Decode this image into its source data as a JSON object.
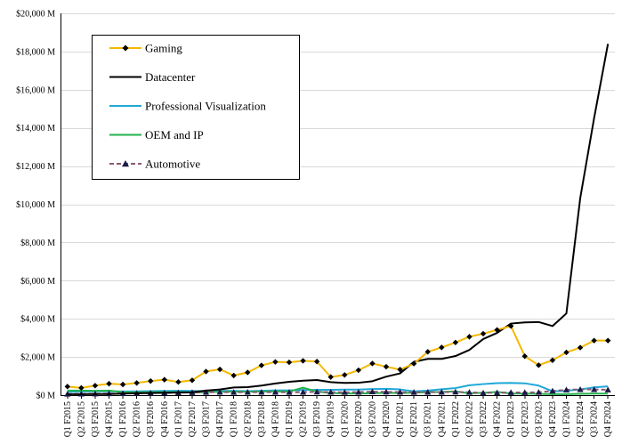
{
  "chart_data": {
    "type": "line",
    "title": "",
    "xlabel": "",
    "ylabel": "",
    "ylim": [
      0,
      20000
    ],
    "y_ticks": [
      0,
      2000,
      4000,
      6000,
      8000,
      10000,
      12000,
      14000,
      16000,
      18000,
      20000
    ],
    "y_tick_labels": [
      "$0 M",
      "$2,000 M",
      "$4,000 M",
      "$6,000 M",
      "$8,000 M",
      "$10,000 M",
      "$12,000 M",
      "$14,000 M",
      "$16,000 M",
      "$18,000 M",
      "$20,000 M"
    ],
    "grid": true,
    "legend_position": "top-left",
    "categories": [
      "Q1 F2015",
      "Q2 F2015",
      "Q3 F2015",
      "Q4 F2015",
      "Q1 F2016",
      "Q2 F2016",
      "Q3 F2016",
      "Q4 F2016",
      "Q1 F2017",
      "Q2 F2017",
      "Q3 F2017",
      "Q4 F2017",
      "Q1 F2018",
      "Q2 F2018",
      "Q3 F2018",
      "Q4 F2018",
      "Q1 F2019",
      "Q2 F2019",
      "Q3 F2019",
      "Q4 F2019",
      "Q1 F2020",
      "Q2 F2020",
      "Q3 F2020",
      "Q4 F2020",
      "Q1 F2021",
      "Q2 F2021",
      "Q3 F2021",
      "Q4 F2021",
      "Q1 F2022",
      "Q2 F2022",
      "Q3 F2022",
      "Q4 F2022",
      "Q1 F2023",
      "Q2 F2023",
      "Q3 F2023",
      "Q4 F2023",
      "Q1 F2024",
      "Q2 F2024",
      "Q3 F2024",
      "Q4 F2024"
    ],
    "series": [
      {
        "name": "Gaming",
        "color": "#f5b800",
        "marker": "diamond",
        "values": [
          450,
          380,
          500,
          600,
          560,
          640,
          740,
          810,
          690,
          780,
          1240,
          1350,
          1030,
          1190,
          1560,
          1740,
          1720,
          1800,
          1760,
          950,
          1060,
          1310,
          1660,
          1490,
          1340,
          1650,
          2270,
          2500,
          2760,
          3060,
          3220,
          3420,
          3620,
          2040,
          1570,
          1830,
          2240,
          2490,
          2860,
          2860
        ]
      },
      {
        "name": "Datacenter",
        "color": "#000000",
        "marker": "none",
        "values": [
          50,
          50,
          60,
          60,
          80,
          100,
          110,
          120,
          140,
          150,
          240,
          300,
          400,
          420,
          500,
          610,
          700,
          760,
          790,
          680,
          640,
          650,
          730,
          970,
          1140,
          1750,
          1900,
          1900,
          2050,
          2370,
          2940,
          3260,
          3750,
          3810,
          3830,
          3620,
          4280,
          10320,
          14510,
          18400
        ]
      },
      {
        "name": "Professional Visualization",
        "color": "#1fa8d8",
        "marker": "none",
        "values": [
          180,
          190,
          200,
          210,
          190,
          200,
          210,
          220,
          230,
          220,
          210,
          230,
          220,
          210,
          230,
          250,
          250,
          270,
          280,
          280,
          290,
          290,
          320,
          330,
          300,
          200,
          240,
          310,
          370,
          520,
          580,
          630,
          640,
          620,
          500,
          200,
          230,
          300,
          410,
          460
        ]
      },
      {
        "name": "OEM and IP",
        "color": "#22b04b",
        "marker": "none",
        "values": [
          240,
          240,
          230,
          240,
          160,
          150,
          160,
          160,
          170,
          140,
          160,
          180,
          180,
          180,
          190,
          200,
          190,
          390,
          190,
          110,
          90,
          90,
          100,
          120,
          110,
          130,
          160,
          170,
          200,
          100,
          120,
          170,
          90,
          80,
          70,
          50,
          50,
          70,
          80,
          80
        ]
      },
      {
        "name": "Automotive",
        "color": "#8b5a6f",
        "marker": "triangle",
        "values": [
          60,
          65,
          70,
          80,
          90,
          100,
          110,
          120,
          130,
          140,
          150,
          160,
          150,
          160,
          160,
          160,
          150,
          160,
          170,
          160,
          150,
          160,
          180,
          170,
          160,
          150,
          160,
          160,
          170,
          150,
          120,
          130,
          140,
          140,
          150,
          220,
          280,
          300,
          300,
          280
        ]
      }
    ]
  }
}
